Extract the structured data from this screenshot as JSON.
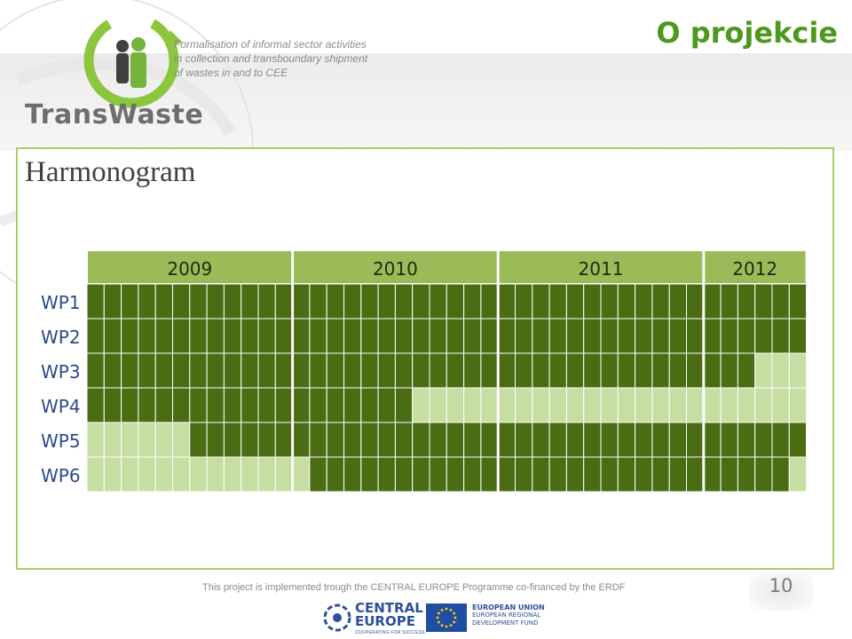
{
  "header": {
    "brand_name": "TransWaste",
    "tagline": [
      "Formalisation of informal sector activities",
      "in collection and transboundary shipment",
      "of wastes in and to CEE"
    ],
    "page_title": "O projekcie"
  },
  "section_title": "Harmonogram",
  "colors": {
    "title_green": "#4b9a1e",
    "header_green": "#9bbb59",
    "active_dark": "#4a6d14",
    "inactive_light": "#c6dea2",
    "frame_border": "#a6cf6a"
  },
  "chart_data": {
    "type": "table",
    "title": "Harmonogram",
    "years": [
      "2009",
      "2010",
      "2011",
      "2012"
    ],
    "months_per_year": [
      12,
      12,
      12,
      6
    ],
    "rows": [
      {
        "label": "WP1",
        "active_from": 1,
        "active_to": 42
      },
      {
        "label": "WP2",
        "active_from": 1,
        "active_to": 42
      },
      {
        "label": "WP3",
        "active_from": 1,
        "active_to": 39
      },
      {
        "label": "WP4",
        "active_from": 1,
        "active_to": 19
      },
      {
        "label": "WP5",
        "active_from": 7,
        "active_to": 42
      },
      {
        "label": "WP6",
        "active_from": 14,
        "active_to": 41
      }
    ]
  },
  "footer": {
    "note": "This project is implemented trough the CENTRAL EUROPE Programme co-financed by the ERDF",
    "page_number": "10",
    "central_europe": [
      "CENTRAL",
      "EUROPE"
    ],
    "central_europe_sub": "COOPERATING FOR SUCCESS.",
    "eu_lines": [
      "EUROPEAN UNION",
      "EUROPEAN REGIONAL",
      "DEVELOPMENT FUND"
    ]
  }
}
